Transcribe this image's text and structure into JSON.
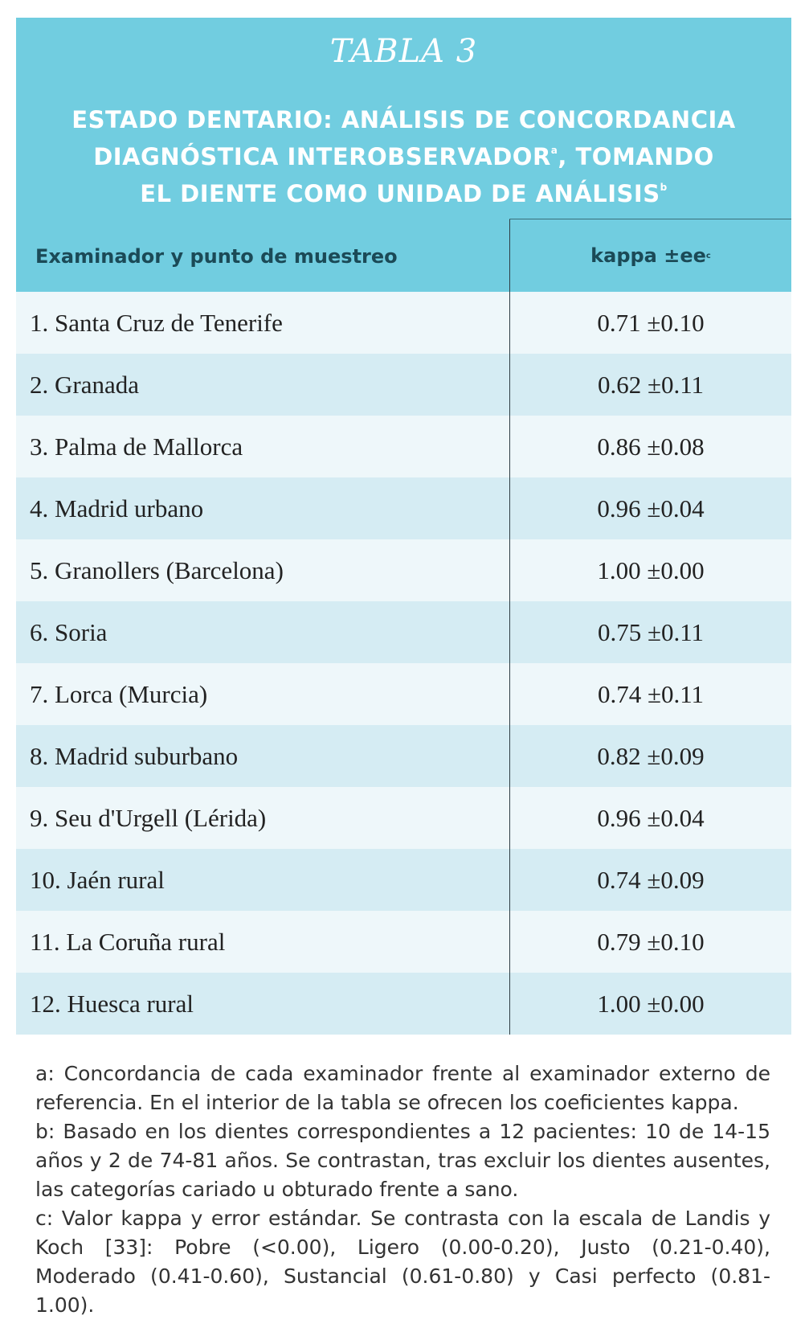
{
  "table": {
    "label": "TABLA 3",
    "title_line1": "ESTADO DENTARIO: ANÁLISIS DE CONCORDANCIA",
    "title_line2": "DIAGNÓSTICA INTEROBSERVADOR",
    "title_line2_sup": "a",
    "title_line2_rest": ", TOMANDO",
    "title_line3": "EL DIENTE COMO UNIDAD DE ANÁLISIS",
    "title_line3_sup": "b",
    "columns": {
      "examiner": "Examinador y punto de muestreo",
      "kappa": "kappa ±ee",
      "kappa_sup": "c"
    },
    "rows": [
      {
        "label": "1. Santa Cruz de Tenerife",
        "value": "0.71 ±0.10"
      },
      {
        "label": "2. Granada",
        "value": "0.62 ±0.11"
      },
      {
        "label": "3. Palma de Mallorca",
        "value": "0.86 ±0.08"
      },
      {
        "label": "4. Madrid urbano",
        "value": "0.96 ±0.04"
      },
      {
        "label": "5. Granollers (Barcelona)",
        "value": "1.00 ±0.00"
      },
      {
        "label": "6. Soria",
        "value": "0.75 ±0.11"
      },
      {
        "label": "7. Lorca (Murcia)",
        "value": "0.74 ±0.11"
      },
      {
        "label": "8. Madrid suburbano",
        "value": "0.82 ±0.09"
      },
      {
        "label": "9. Seu d'Urgell (Lérida)",
        "value": "0.96 ±0.04"
      },
      {
        "label": "10. Jaén rural",
        "value": "0.74 ±0.09"
      },
      {
        "label": "11. La Coruña rural",
        "value": "0.79 ±0.10"
      },
      {
        "label": "12. Huesca rural",
        "value": "1.00 ±0.00"
      }
    ]
  },
  "notes": {
    "a": "a: Concordancia de cada examinador frente al examinador externo de referencia. En el interior de la tabla se ofrecen los coeficientes kappa.",
    "b": "b: Basado en los dientes correspondientes a 12 pacientes: 10 de 14-15 años y 2 de 74-81 años. Se contrastan, tras excluir los dientes ausentes, las categorías cariado u obturado frente a sano.",
    "c": "c: Valor kappa y error estándar. Se contrasta con la escala de Landis y Koch [33]: Pobre (<0.00), Ligero (0.00-0.20), Justo (0.21-0.40), Moderado (0.41-0.60), Sustancial (0.61-0.80) y Casi perfecto (0.81-1.00)."
  },
  "colors": {
    "header_bg": "#71cde0",
    "row_light": "#eef7fa",
    "row_dark": "#d5ecf3",
    "header_text": "#1b4a57"
  }
}
